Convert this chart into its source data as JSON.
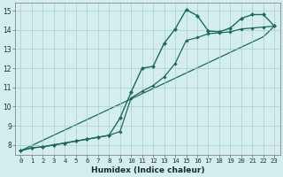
{
  "xlabel": "Humidex (Indice chaleur)",
  "x_values": [
    0,
    1,
    2,
    3,
    4,
    5,
    6,
    7,
    8,
    9,
    10,
    11,
    12,
    13,
    14,
    15,
    16,
    17,
    18,
    19,
    20,
    21,
    22,
    23
  ],
  "line1_y": [
    7.7,
    7.85,
    7.9,
    8.0,
    8.1,
    8.2,
    8.3,
    8.4,
    8.5,
    9.4,
    10.75,
    12.0,
    12.1,
    13.3,
    14.05,
    15.05,
    14.75,
    13.95,
    13.9,
    14.1,
    14.6,
    14.8,
    14.8,
    14.2
  ],
  "line2_y": [
    7.7,
    7.85,
    7.9,
    8.0,
    8.1,
    8.2,
    8.3,
    8.4,
    8.5,
    8.7,
    10.45,
    10.8,
    11.1,
    11.55,
    12.25,
    13.45,
    13.6,
    13.8,
    13.85,
    13.9,
    14.05,
    14.1,
    14.15,
    14.2
  ],
  "line3_y": [
    7.7,
    7.97,
    8.24,
    8.51,
    8.78,
    9.05,
    9.32,
    9.59,
    9.86,
    10.13,
    10.4,
    10.67,
    10.94,
    11.21,
    11.48,
    11.75,
    12.02,
    12.29,
    12.56,
    12.83,
    13.1,
    13.37,
    13.64,
    14.2
  ],
  "line_color": "#1a6b5a",
  "bg_color": "#d4eeee",
  "grid_color": "#aacece",
  "xlim": [
    0,
    23
  ],
  "ylim": [
    7.5,
    15.4
  ],
  "yticks": [
    8,
    9,
    10,
    11,
    12,
    13,
    14,
    15
  ],
  "xticks": [
    0,
    1,
    2,
    3,
    4,
    5,
    6,
    7,
    8,
    9,
    10,
    11,
    12,
    13,
    14,
    15,
    16,
    17,
    18,
    19,
    20,
    21,
    22,
    23
  ],
  "tick_fontsize": 5.2,
  "xlabel_fontsize": 6.5
}
